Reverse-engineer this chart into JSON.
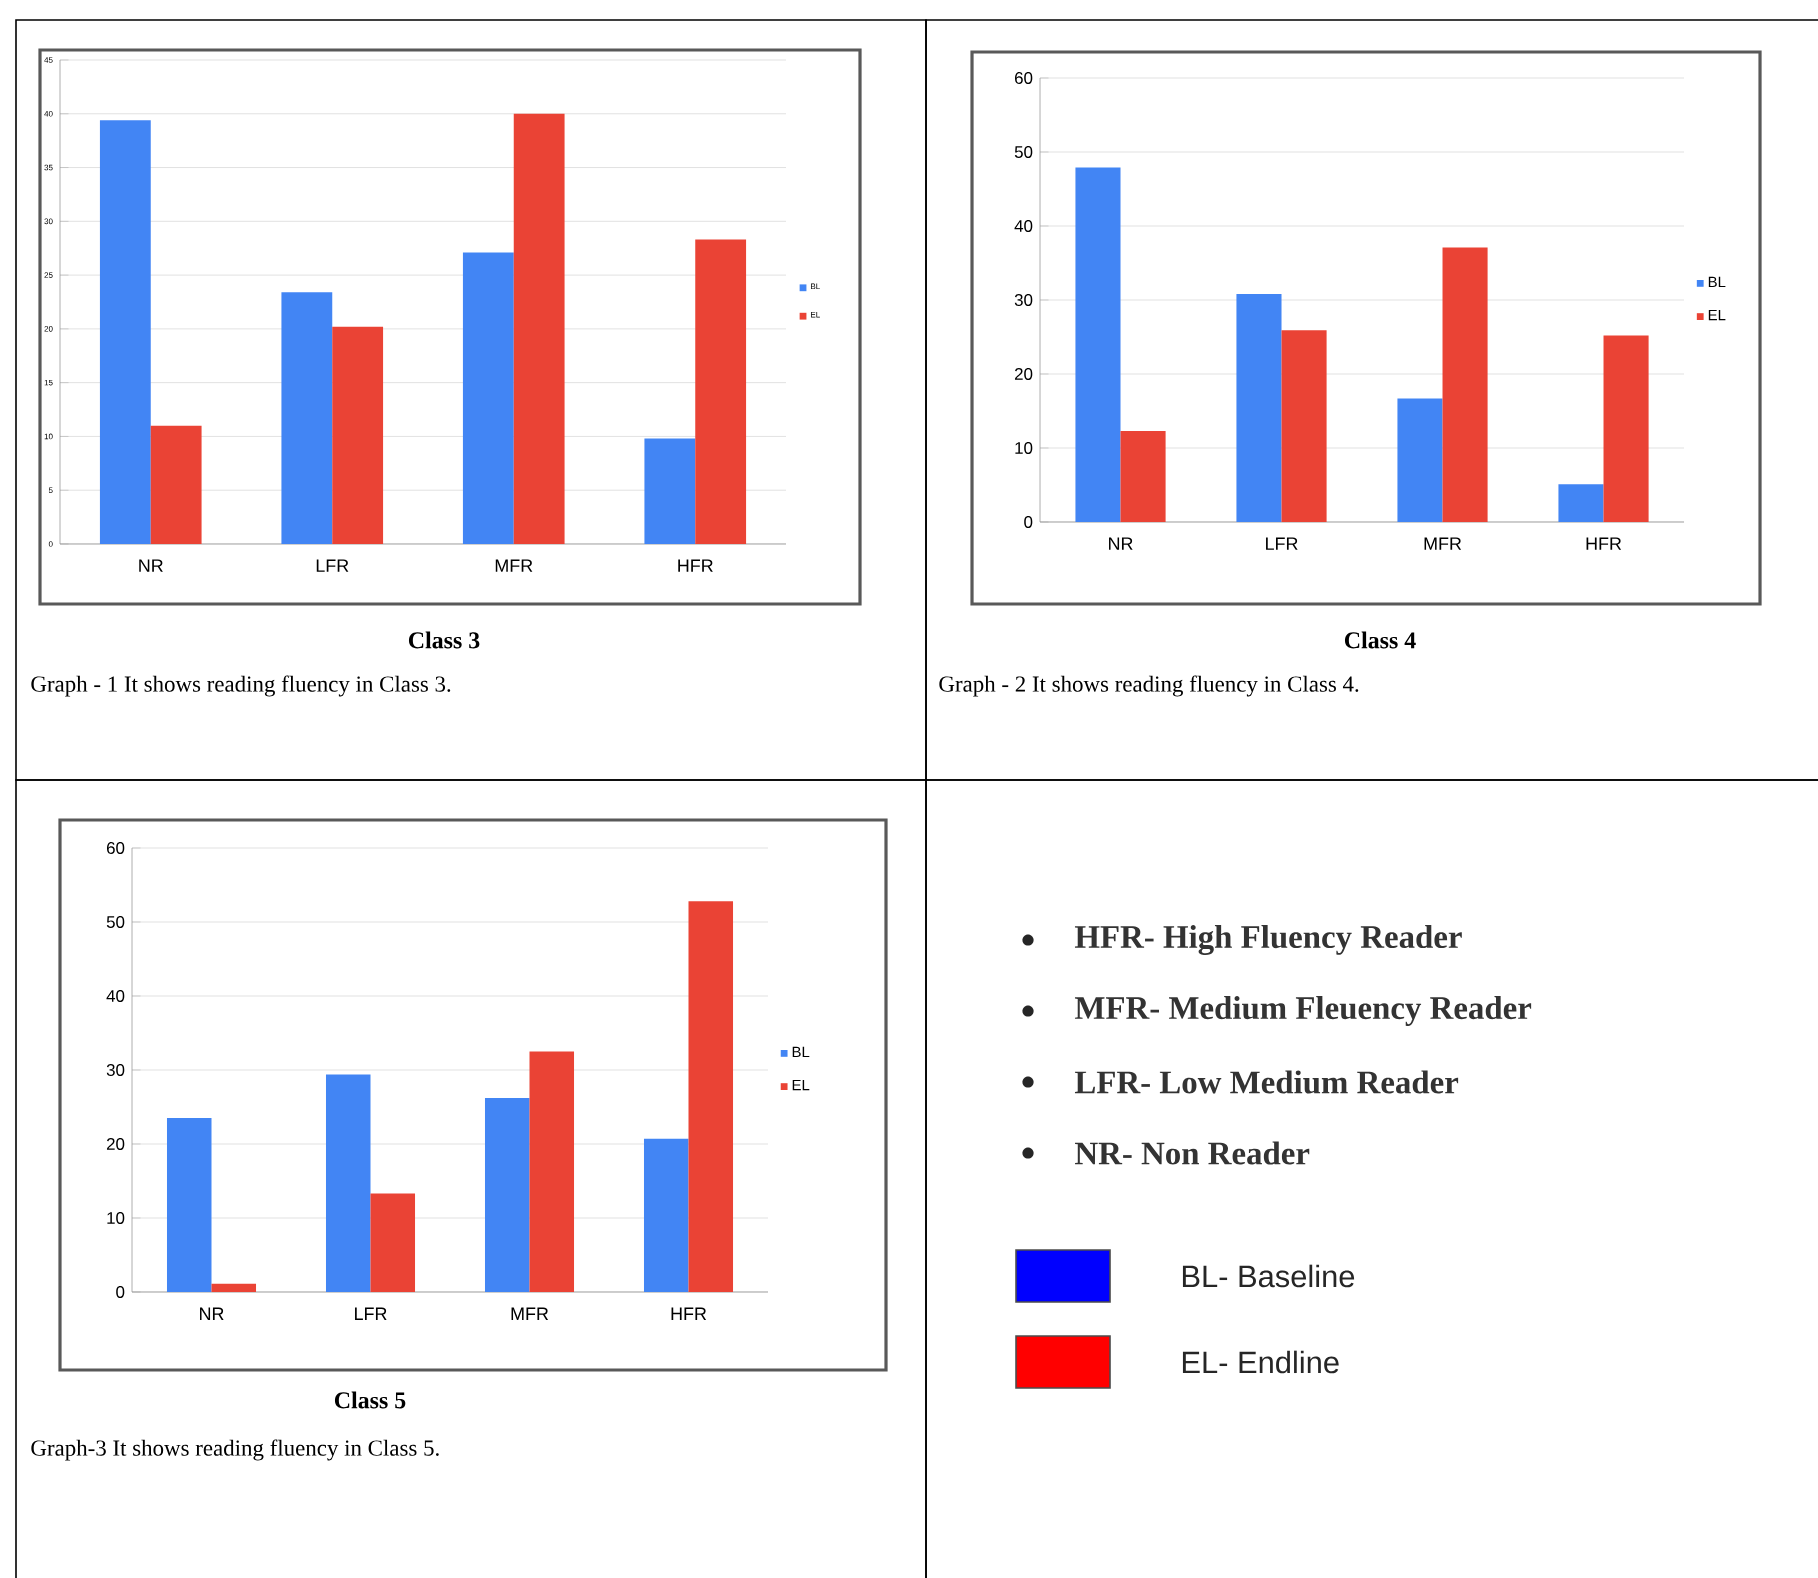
{
  "chart_data": [
    {
      "type": "bar",
      "title": "Class 3",
      "annotations": [
        "Graph - 1 It shows reading fluency in Class  3."
      ],
      "categories": [
        "NR",
        "LFR",
        "MFR",
        "HFR"
      ],
      "series": [
        {
          "name": "BL",
          "color": "#4285f4",
          "values": [
            39.4,
            23.4,
            27.1,
            9.8
          ]
        },
        {
          "name": "EL",
          "color": "#ea4335",
          "values": [
            11.0,
            20.2,
            40.0,
            28.3
          ]
        }
      ],
      "ylim": [
        0,
        45
      ],
      "yticks": [
        0,
        5,
        10,
        15,
        20,
        25,
        30,
        35,
        40,
        45
      ],
      "grid": "y",
      "legend": "right"
    },
    {
      "type": "bar",
      "title": "Class 4",
      "annotations": [
        "Graph - 2  It shows reading fluency in Class 4."
      ],
      "categories": [
        "NR",
        "LFR",
        "MFR",
        "HFR"
      ],
      "series": [
        {
          "name": "BL",
          "color": "#4285f4",
          "values": [
            47.9,
            30.8,
            16.7,
            5.1
          ]
        },
        {
          "name": "EL",
          "color": "#ea4335",
          "values": [
            12.3,
            25.9,
            37.1,
            25.2
          ]
        }
      ],
      "ylim": [
        0,
        60
      ],
      "yticks": [
        0,
        10,
        20,
        30,
        40,
        50,
        60
      ],
      "grid": "y",
      "legend": "right"
    },
    {
      "type": "bar",
      "title": "Class 5",
      "annotations": [
        "Graph-3 It shows reading fluency in Class 5."
      ],
      "categories": [
        "NR",
        "LFR",
        "MFR",
        "HFR"
      ],
      "series": [
        {
          "name": "BL",
          "color": "#4285f4",
          "values": [
            23.5,
            29.4,
            26.2,
            20.7
          ]
        },
        {
          "name": "EL",
          "color": "#ea4335",
          "values": [
            1.1,
            13.3,
            32.5,
            52.8
          ]
        }
      ],
      "ylim": [
        0,
        60
      ],
      "yticks": [
        0,
        10,
        20,
        30,
        40,
        50,
        60
      ],
      "grid": "y",
      "legend": "right"
    },
    {
      "type": "other",
      "annotations": [
        "HFR- High Fluency Reader",
        "MFR- Medium Fleuency Reader",
        "LFR- Low Medium Reader",
        "NR- Non Reader",
        "BL- Baseline",
        "EL- Endline"
      ],
      "colors": [
        "#0000ff",
        "#ff0000"
      ]
    }
  ]
}
